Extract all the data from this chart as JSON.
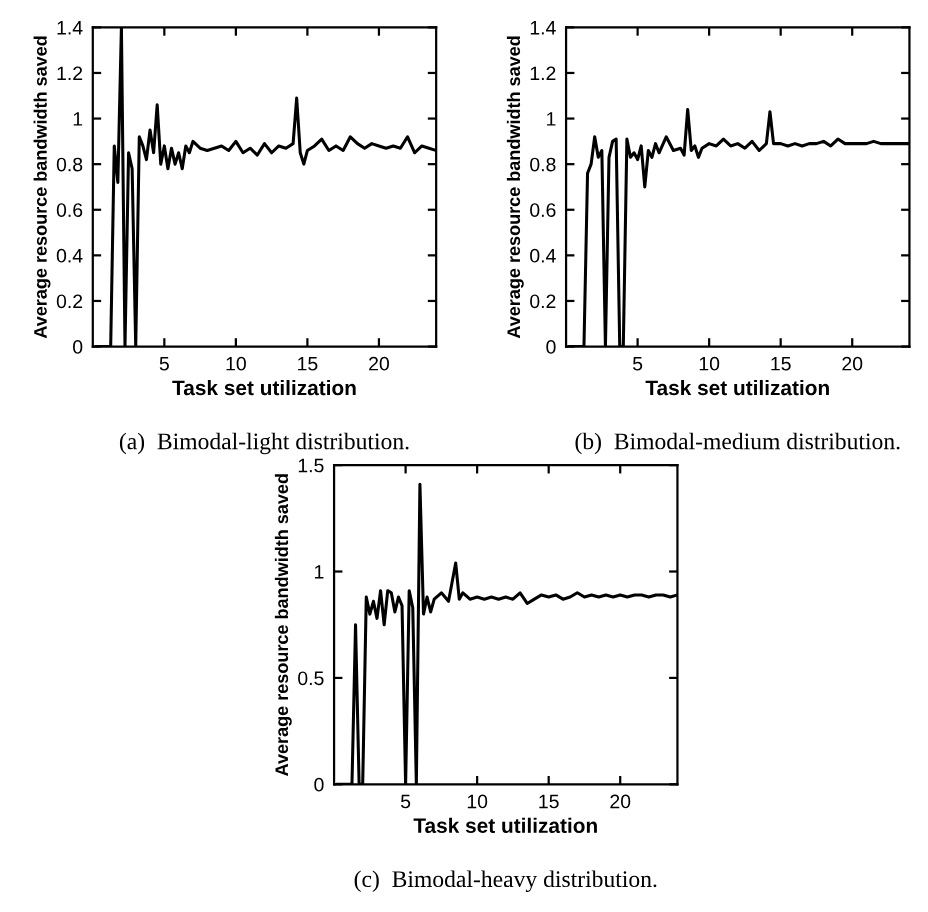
{
  "chart_data": [
    {
      "type": "line",
      "xlabel": "Task set utilization",
      "ylabel": "Average resource bandwidth saved",
      "annotations": [
        "(a)  Bimodal-light distribution."
      ],
      "xlim": [
        0,
        24
      ],
      "ylim": [
        0,
        1.4
      ],
      "xticks": [
        5,
        10,
        15,
        20
      ],
      "yticks": [
        0,
        0.2,
        0.4,
        0.6,
        0.8,
        1,
        1.2,
        1.4
      ],
      "grid": false,
      "series": [
        {
          "color": "#000000",
          "x": [
            0.25,
            0.5,
            0.75,
            1,
            1.25,
            1.5,
            1.75,
            2,
            2.25,
            2.5,
            2.75,
            3,
            3.25,
            3.5,
            3.75,
            4,
            4.25,
            4.5,
            4.75,
            5,
            5.25,
            5.5,
            5.75,
            6,
            6.25,
            6.5,
            6.75,
            7,
            7.5,
            8,
            8.5,
            9,
            9.5,
            10,
            10.5,
            11,
            11.5,
            12,
            12.5,
            13,
            13.5,
            14,
            14.25,
            14.5,
            14.75,
            15,
            15.5,
            16,
            16.5,
            17,
            17.5,
            18,
            18.5,
            19,
            19.5,
            20,
            20.5,
            21,
            21.5,
            22,
            22.5,
            23,
            23.5,
            24
          ],
          "values": [
            0,
            0,
            0,
            0,
            0,
            0.88,
            0.72,
            1.4,
            0,
            0.85,
            0.78,
            0,
            0.92,
            0.88,
            0.82,
            0.95,
            0.85,
            1.06,
            0.8,
            0.88,
            0.78,
            0.87,
            0.8,
            0.85,
            0.78,
            0.88,
            0.85,
            0.9,
            0.87,
            0.86,
            0.87,
            0.88,
            0.86,
            0.9,
            0.85,
            0.87,
            0.84,
            0.89,
            0.85,
            0.88,
            0.87,
            0.89,
            1.09,
            0.85,
            0.8,
            0.86,
            0.88,
            0.91,
            0.86,
            0.88,
            0.86,
            0.92,
            0.89,
            0.87,
            0.89,
            0.88,
            0.87,
            0.88,
            0.87,
            0.92,
            0.85,
            0.88,
            0.87,
            0.86
          ]
        }
      ]
    },
    {
      "type": "line",
      "xlabel": "Task set utilization",
      "ylabel": "Average resource bandwidth saved",
      "annotations": [
        "(b)  Bimodal-medium distribution."
      ],
      "xlim": [
        0,
        24
      ],
      "ylim": [
        0,
        1.4
      ],
      "xticks": [
        5,
        10,
        15,
        20
      ],
      "yticks": [
        0,
        0.2,
        0.4,
        0.6,
        0.8,
        1,
        1.2,
        1.4
      ],
      "grid": false,
      "series": [
        {
          "color": "#000000",
          "x": [
            0.25,
            0.5,
            0.75,
            1,
            1.25,
            1.5,
            1.75,
            2,
            2.25,
            2.5,
            2.75,
            3,
            3.25,
            3.5,
            3.75,
            4,
            4.25,
            4.5,
            4.75,
            5,
            5.25,
            5.5,
            5.75,
            6,
            6.25,
            6.5,
            7,
            7.5,
            8,
            8.25,
            8.5,
            8.75,
            9,
            9.25,
            9.5,
            10,
            10.5,
            11,
            11.5,
            12,
            12.5,
            13,
            13.5,
            14,
            14.25,
            14.5,
            15,
            15.5,
            16,
            16.5,
            17,
            17.5,
            18,
            18.5,
            19,
            19.5,
            20,
            20.5,
            21,
            21.5,
            22,
            22.5,
            23,
            23.5,
            24
          ],
          "values": [
            0,
            0,
            0,
            0,
            0,
            0.76,
            0.8,
            0.92,
            0.83,
            0.86,
            0,
            0.83,
            0.9,
            0.91,
            0,
            0,
            0.91,
            0.83,
            0.85,
            0.82,
            0.88,
            0.7,
            0.86,
            0.83,
            0.89,
            0.85,
            0.92,
            0.86,
            0.87,
            0.84,
            1.04,
            0.86,
            0.88,
            0.83,
            0.87,
            0.89,
            0.88,
            0.91,
            0.88,
            0.89,
            0.87,
            0.9,
            0.86,
            0.89,
            1.03,
            0.89,
            0.89,
            0.88,
            0.89,
            0.88,
            0.89,
            0.89,
            0.9,
            0.88,
            0.91,
            0.89,
            0.89,
            0.89,
            0.89,
            0.9,
            0.89,
            0.89,
            0.89,
            0.89,
            0.89
          ]
        }
      ]
    },
    {
      "type": "line",
      "xlabel": "Task set utilization",
      "ylabel": "Average resource bandwidth saved",
      "annotations": [
        "(c)  Bimodal-heavy distribution."
      ],
      "xlim": [
        0,
        24
      ],
      "ylim": [
        0,
        1.5
      ],
      "xticks": [
        5,
        10,
        15,
        20
      ],
      "yticks": [
        0,
        0.5,
        1,
        1.5
      ],
      "grid": false,
      "series": [
        {
          "color": "#000000",
          "x": [
            0.25,
            0.5,
            0.75,
            1,
            1.25,
            1.5,
            1.75,
            2,
            2.25,
            2.5,
            2.75,
            3,
            3.25,
            3.5,
            3.75,
            4,
            4.25,
            4.5,
            4.75,
            5,
            5.25,
            5.5,
            5.75,
            6,
            6.25,
            6.5,
            6.75,
            7,
            7.5,
            8,
            8.5,
            8.75,
            9,
            9.5,
            10,
            10.5,
            11,
            11.5,
            12,
            12.5,
            13,
            13.5,
            14,
            14.5,
            15,
            15.5,
            16,
            16.5,
            17,
            17.5,
            18,
            18.5,
            19,
            19.5,
            20,
            20.5,
            21,
            21.5,
            22,
            22.5,
            23,
            23.5,
            24
          ],
          "values": [
            0,
            0,
            0,
            0,
            0,
            0.75,
            0,
            0,
            0.88,
            0.8,
            0.86,
            0.78,
            0.91,
            0.75,
            0.91,
            0.9,
            0.81,
            0.88,
            0.84,
            0,
            0.91,
            0.83,
            0,
            1.41,
            0.8,
            0.88,
            0.81,
            0.87,
            0.9,
            0.86,
            1.04,
            0.87,
            0.9,
            0.87,
            0.88,
            0.87,
            0.88,
            0.87,
            0.88,
            0.87,
            0.9,
            0.85,
            0.87,
            0.89,
            0.88,
            0.89,
            0.87,
            0.88,
            0.9,
            0.88,
            0.89,
            0.88,
            0.89,
            0.88,
            0.89,
            0.88,
            0.89,
            0.89,
            0.88,
            0.89,
            0.89,
            0.88,
            0.89
          ]
        }
      ]
    }
  ]
}
